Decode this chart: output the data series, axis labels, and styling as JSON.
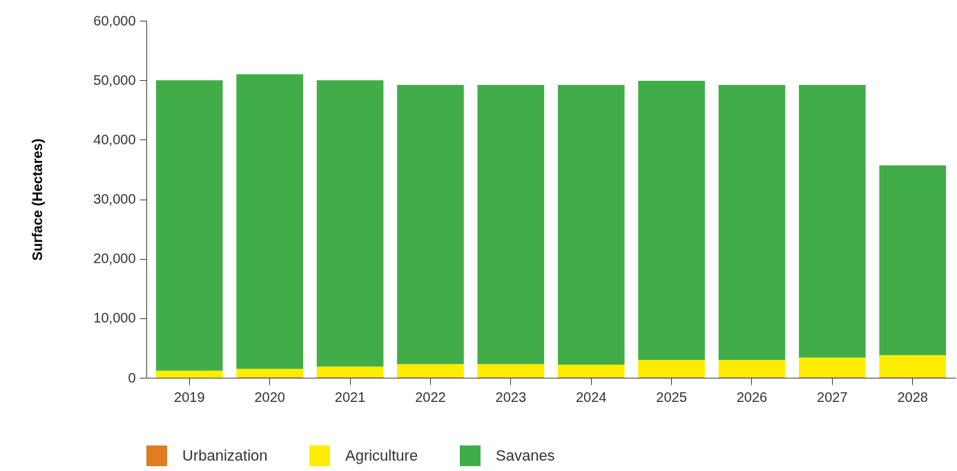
{
  "chart_data": {
    "type": "bar",
    "stacked": true,
    "ylabel": "Surface (Hectares)",
    "categories": [
      "2019",
      "2020",
      "2021",
      "2022",
      "2023",
      "2024",
      "2025",
      "2026",
      "2027",
      "2028"
    ],
    "series": [
      {
        "name": "Urbanization",
        "color": "#e07c24",
        "values": [
          0,
          100,
          100,
          100,
          100,
          100,
          100,
          100,
          100,
          100
        ]
      },
      {
        "name": "Agriculture",
        "color": "#ffed00",
        "values": [
          1200,
          1400,
          1800,
          2200,
          2200,
          2100,
          2900,
          2900,
          3300,
          3700
        ]
      },
      {
        "name": "Savanes",
        "color": "#41ad49",
        "values": [
          48800,
          49500,
          48100,
          46900,
          46900,
          47000,
          46900,
          46200,
          45800,
          31900
        ]
      }
    ],
    "ylim": [
      0,
      60000
    ],
    "yticks": [
      0,
      {
        "value": 10000,
        "label": "10,000"
      },
      {
        "value": 20000,
        "label": "20,000"
      },
      {
        "value": 30000,
        "label": "30,000"
      },
      {
        "value": 40000,
        "label": "40,000"
      },
      {
        "value": 50000,
        "label": "50,000"
      },
      {
        "value": 60000,
        "label": "60,000"
      }
    ],
    "grid": false,
    "legend": "bottom"
  }
}
